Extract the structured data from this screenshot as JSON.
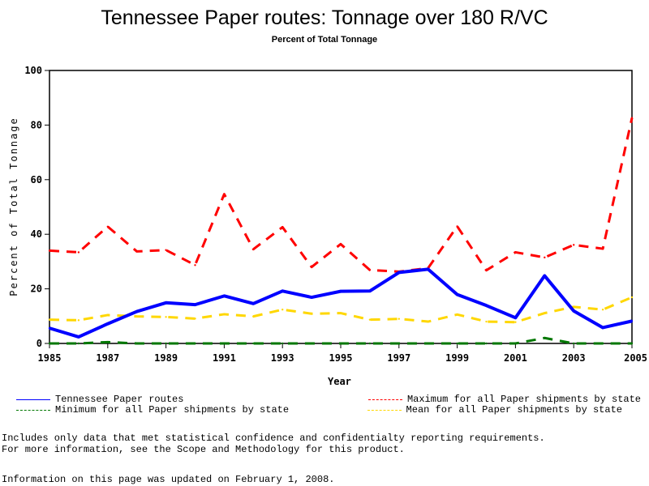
{
  "chart_data": {
    "type": "line",
    "title": "Tennessee Paper routes: Tonnage over 180 R/VC",
    "subtitle": "Percent of Total Tonnage",
    "xlabel": "Year",
    "ylabel": "Percent of Total Tonnage",
    "xlim": [
      1985,
      2005
    ],
    "ylim": [
      0,
      100
    ],
    "x": [
      1985,
      1986,
      1987,
      1988,
      1989,
      1990,
      1991,
      1992,
      1993,
      1994,
      1995,
      1996,
      1997,
      1998,
      1999,
      2000,
      2001,
      2002,
      2003,
      2004,
      2005
    ],
    "x_ticks": [
      "1985",
      "1987",
      "1989",
      "1991",
      "1993",
      "1995",
      "1997",
      "1999",
      "2001",
      "2003",
      "2005"
    ],
    "y_ticks": [
      "0",
      "20",
      "40",
      "60",
      "80",
      "100"
    ],
    "grid": false,
    "legend_position": "bottom",
    "series": [
      {
        "name": "Tennessee Paper routes",
        "color": "#0000ff",
        "style": "solid",
        "values": [
          5.6,
          2.4,
          7.2,
          11.7,
          14.9,
          14.2,
          17.4,
          14.6,
          19.2,
          16.9,
          19.1,
          19.2,
          26.0,
          27.2,
          17.9,
          13.9,
          9.4,
          24.8,
          11.9,
          5.8,
          8.2
        ]
      },
      {
        "name": "Maximum for all Paper shipments by state",
        "color": "#ff0000",
        "style": "dashed",
        "values": [
          34.0,
          33.4,
          42.8,
          33.7,
          34.2,
          28.7,
          54.7,
          34.5,
          42.6,
          28.0,
          36.4,
          26.9,
          26.3,
          27.6,
          42.9,
          26.8,
          33.4,
          31.5,
          36.1,
          34.7,
          82.6
        ]
      },
      {
        "name": "Minimum for all Paper shipments by state",
        "color": "#007700",
        "style": "dashed",
        "values": [
          0,
          0,
          0.5,
          0,
          0,
          0,
          0,
          0,
          0,
          0,
          0,
          0,
          0,
          0,
          0,
          0,
          0,
          2.0,
          0,
          0,
          0
        ]
      },
      {
        "name": "Mean for all Paper shipments by state",
        "color": "#ffd700",
        "style": "dashed",
        "values": [
          8.7,
          8.5,
          10.4,
          9.9,
          9.7,
          9.1,
          10.7,
          9.9,
          12.4,
          10.9,
          11.1,
          8.7,
          9.0,
          8.0,
          10.6,
          8.0,
          7.8,
          11.1,
          13.4,
          12.4,
          16.9
        ]
      }
    ]
  },
  "legend": [
    {
      "label": "Tennessee Paper routes",
      "color": "#0000ff",
      "style": "solid"
    },
    {
      "label": "Maximum for all Paper shipments by state",
      "color": "#ff0000",
      "style": "dashed"
    },
    {
      "label": "Minimum for all Paper shipments by state",
      "color": "#007700",
      "style": "dashed"
    },
    {
      "label": "Mean for all Paper shipments by state",
      "color": "#ffd700",
      "style": "dashed"
    }
  ],
  "footnotes": {
    "line1": "Includes only data that met statistical confidence and confidentialty reporting requirements.",
    "line2": "For more information, see the Scope and Methodology for this product.",
    "updated": "Information on this page was updated on February 1, 2008."
  }
}
